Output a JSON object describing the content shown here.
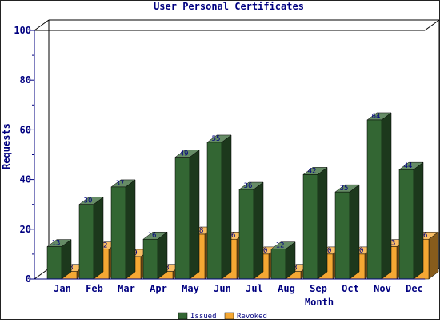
{
  "chart_data": {
    "type": "bar",
    "title": "User Personal Certificates",
    "xlabel": "Month",
    "ylabel": "Requests",
    "categories": [
      "Jan",
      "Feb",
      "Mar",
      "Apr",
      "May",
      "Jun",
      "Jul",
      "Aug",
      "Sep",
      "Oct",
      "Nov",
      "Dec"
    ],
    "series": [
      {
        "name": "Issued",
        "color": "#336633",
        "values": [
          13,
          30,
          37,
          16,
          49,
          55,
          36,
          12,
          42,
          35,
          64,
          44
        ]
      },
      {
        "name": "Revoked",
        "color": "#f5a833",
        "values": [
          3,
          12,
          9,
          3,
          18,
          16,
          10,
          3,
          10,
          10,
          13,
          16
        ]
      }
    ],
    "ylim": [
      0,
      100
    ],
    "yticks": [
      0,
      20,
      40,
      60,
      80,
      100
    ],
    "legend": "bottom",
    "grid": false
  }
}
